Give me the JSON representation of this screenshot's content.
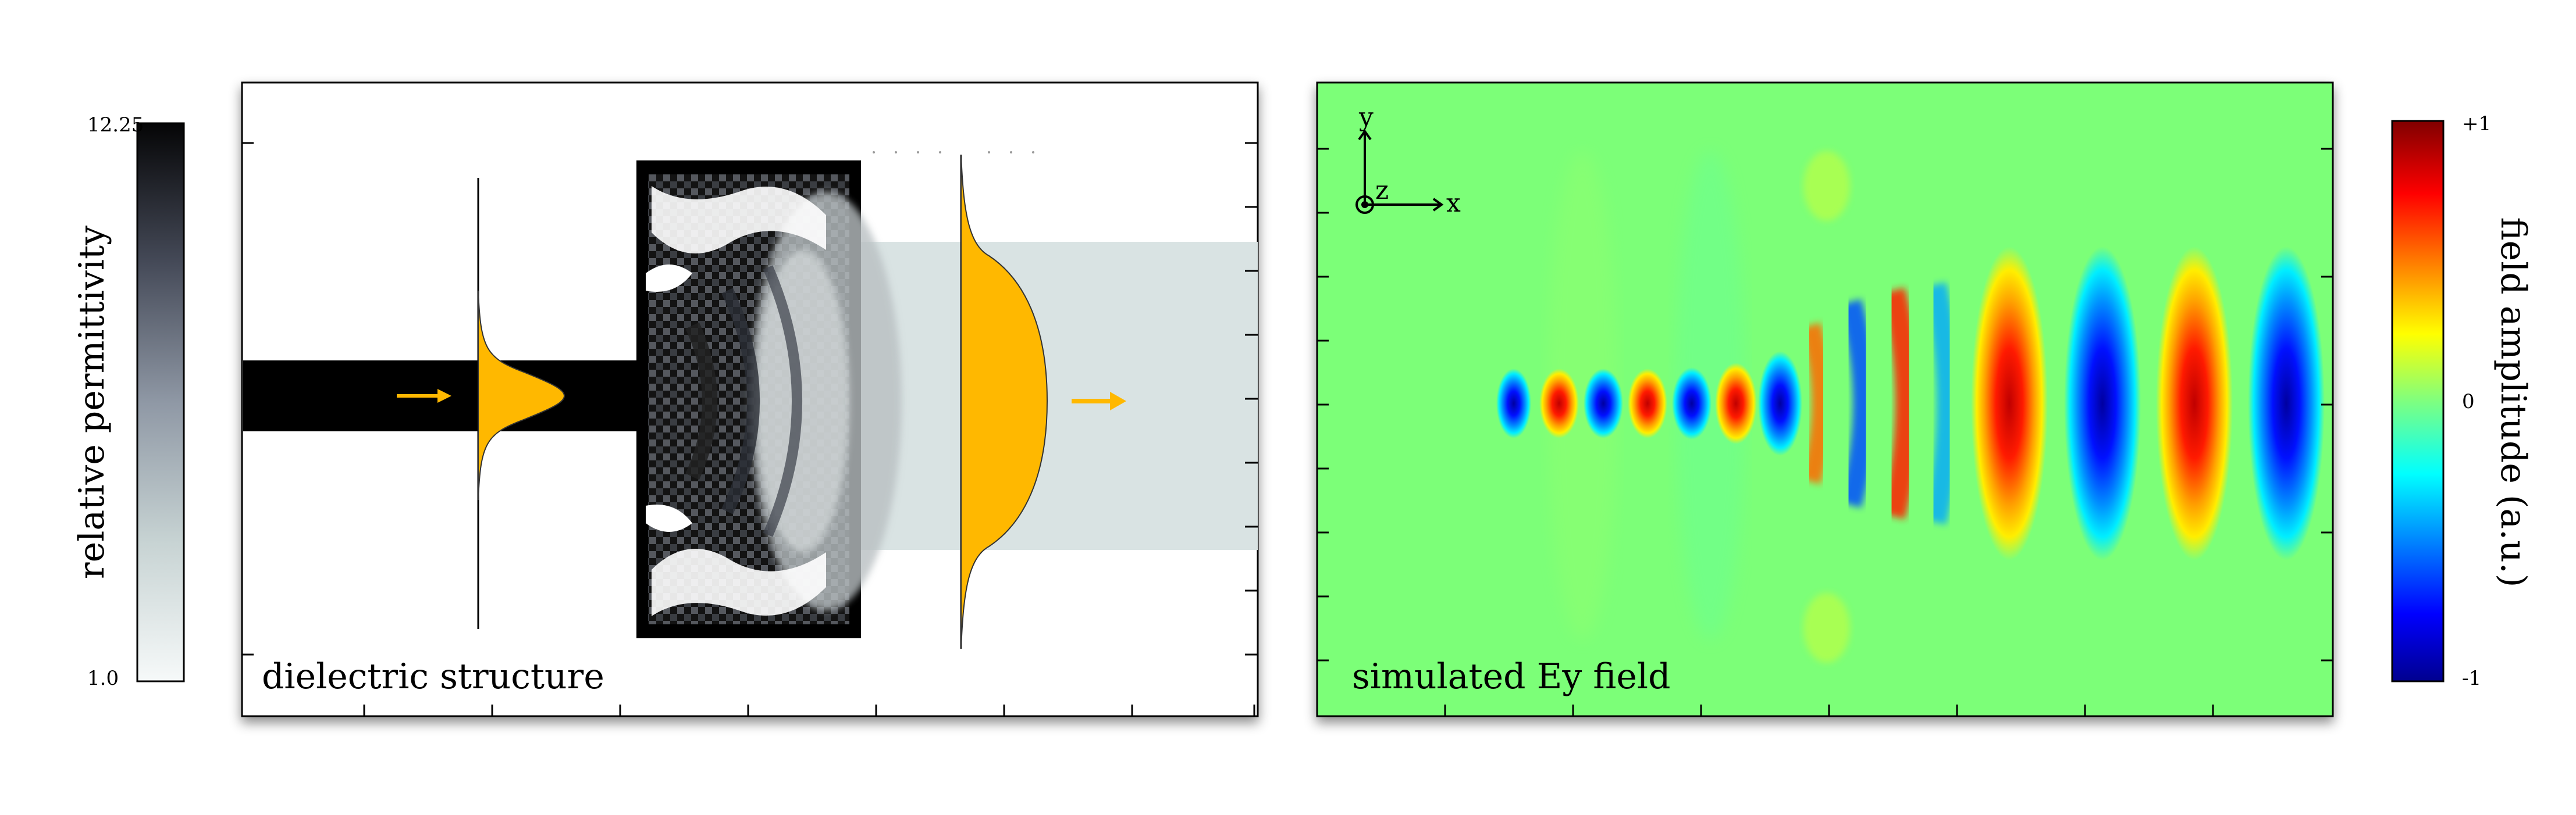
{
  "left_colorbar": {
    "title": "relative permittivity",
    "max_label": "12.25",
    "min_label": "1.0",
    "range": [
      1.0,
      12.25
    ]
  },
  "dielectric_panel": {
    "caption": "dielectric structure"
  },
  "field_panel": {
    "caption": "simulated Ey field",
    "axes": {
      "y": "y",
      "z": "z",
      "x": "x"
    }
  },
  "right_colorbar": {
    "title": "field amplitude (a.u.)",
    "max_label": "+1",
    "mid_label": "0",
    "min_label": "-1",
    "range": [
      -1,
      1
    ]
  },
  "colors": {
    "beam": "#ffb800",
    "output_guide": "#d9e3e3",
    "waveguide": "#000000"
  }
}
